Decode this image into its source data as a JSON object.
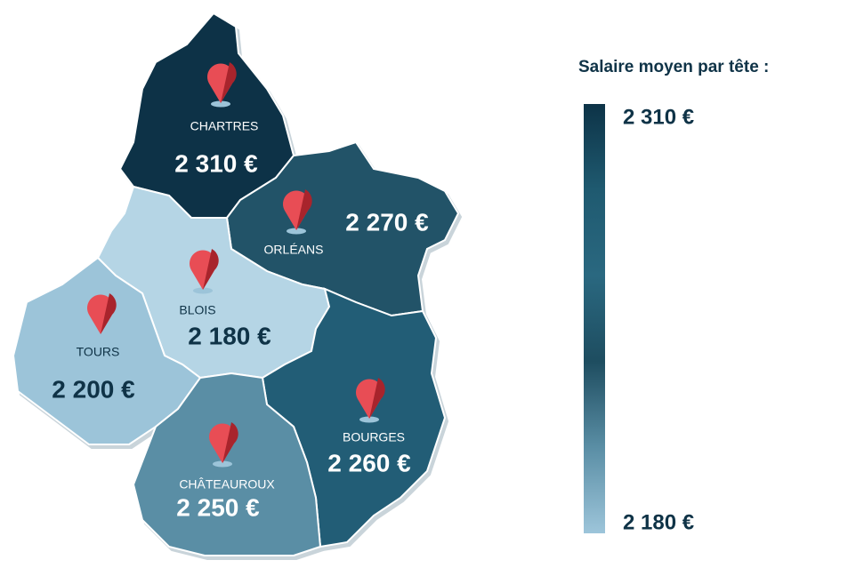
{
  "legend": {
    "title": "Salaire moyen par tête :",
    "max_label": "2 310 €",
    "min_label": "2 180 €",
    "colors": [
      "#0d3347",
      "#1f5a70",
      "#2a6880",
      "#1e4d60",
      "#5a8ea5",
      "#9dc5da"
    ]
  },
  "regions": [
    {
      "city": "CHARTRES",
      "salary": "2 310 €",
      "color": "#0d3347",
      "text_color": "#ffffff"
    },
    {
      "city": "ORLÉANS",
      "salary": "2 270 €",
      "color": "#215268",
      "text_color": "#ffffff"
    },
    {
      "city": "BLOIS",
      "salary": "2 180 €",
      "color": "#b5d5e5",
      "text_color": "#0f3347"
    },
    {
      "city": "TOURS",
      "salary": "2 200 €",
      "color": "#9cc4d9",
      "text_color": "#0f3347"
    },
    {
      "city": "BOURGES",
      "salary": "2 260 €",
      "color": "#235d76",
      "text_color": "#ffffff"
    },
    {
      "city": "CHÂTEAUROUX",
      "salary": "2 250 €",
      "color": "#5a8ea5",
      "text_color": "#ffffff"
    }
  ]
}
